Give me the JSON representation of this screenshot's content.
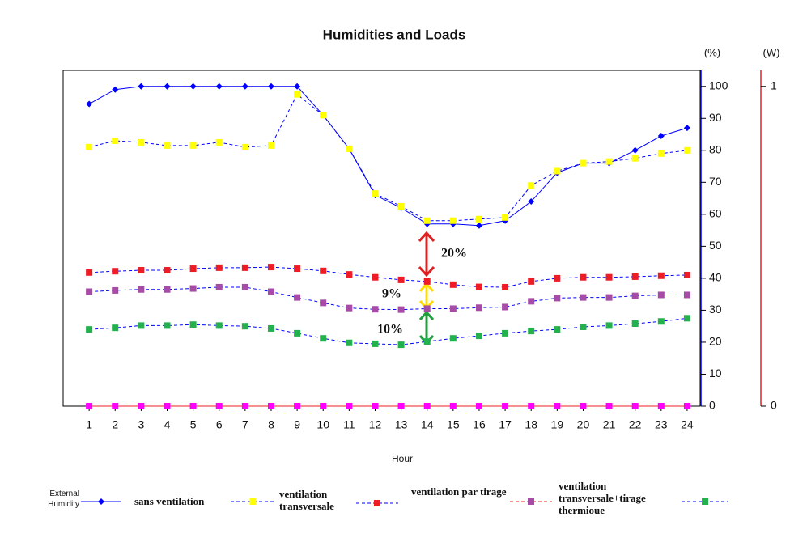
{
  "chart_data": {
    "type": "line",
    "title": "Humidities and Loads",
    "x_label": "Hour",
    "y_label": "(%)",
    "y2_label": "(W)",
    "x": [
      1,
      2,
      3,
      4,
      5,
      6,
      7,
      8,
      9,
      10,
      11,
      12,
      13,
      14,
      15,
      16,
      17,
      18,
      19,
      20,
      21,
      22,
      23,
      24
    ],
    "xlim": [
      0,
      24.5
    ],
    "xticks": [
      1,
      2,
      3,
      4,
      5,
      6,
      7,
      8,
      9,
      10,
      11,
      12,
      13,
      14,
      15,
      16,
      17,
      18,
      19,
      20,
      21,
      22,
      23,
      24
    ],
    "ylim": [
      0,
      105
    ],
    "yticks": [
      0,
      10,
      20,
      30,
      40,
      50,
      60,
      70,
      80,
      90,
      100
    ],
    "y2lim": [
      0,
      1.05
    ],
    "y2ticks": [
      0,
      1
    ],
    "series": [
      {
        "name": "External Humidity",
        "color": "#0000ff",
        "line_color": "#0000ff",
        "line_style": "solid",
        "marker": "diamond",
        "values": [
          94.5,
          99,
          100,
          100,
          100,
          100,
          100,
          100,
          100,
          91,
          80.5,
          66,
          62,
          57,
          57,
          56.5,
          58,
          64,
          73,
          76,
          76,
          80,
          84.5,
          87
        ]
      },
      {
        "name": "sans ventilation",
        "color": "#ffff00",
        "line_color": "#0000ff",
        "line_style": "dashed",
        "marker": "square",
        "values": [
          81,
          83,
          82.5,
          81.5,
          81.5,
          82.5,
          81,
          81.5,
          97.5,
          91,
          80.5,
          66.5,
          62.5,
          58,
          58,
          58.5,
          59,
          69,
          73.5,
          76,
          76.5,
          77.5,
          79,
          80
        ]
      },
      {
        "name": "ventilation transversale",
        "color": "#ee1c25",
        "line_color": "#0000ff",
        "line_style": "dashed",
        "marker": "square",
        "values": [
          41.8,
          42.2,
          42.5,
          42.5,
          43,
          43.3,
          43.3,
          43.5,
          43,
          42.3,
          41.2,
          40.3,
          39.5,
          39,
          38,
          37.3,
          37.2,
          39,
          40,
          40.3,
          40.3,
          40.5,
          40.8,
          41
        ]
      },
      {
        "name": "ventilation par tirage",
        "color": "#a64ca6",
        "line_color": "#0000ff",
        "line_style": "dashed",
        "marker": "square",
        "values": [
          35.8,
          36.2,
          36.5,
          36.5,
          36.8,
          37.2,
          37.2,
          35.8,
          34,
          32.3,
          30.7,
          30.3,
          30.2,
          30.5,
          30.5,
          30.8,
          31,
          32.8,
          33.8,
          34,
          34,
          34.5,
          34.8,
          34.8
        ]
      },
      {
        "name": "ventilation transversale+tirage thermioue",
        "color": "#22b14c",
        "line_color": "#0000ff",
        "line_style": "dashed",
        "marker": "square",
        "values": [
          24,
          24.5,
          25.2,
          25.2,
          25.5,
          25.2,
          25,
          24.3,
          22.8,
          21.2,
          19.8,
          19.5,
          19.2,
          20.2,
          21.2,
          22,
          22.8,
          23.5,
          24,
          24.8,
          25.2,
          25.8,
          26.5,
          27.5
        ]
      },
      {
        "color": "#ff00ff",
        "line_color": "#ee1c25",
        "line_style": "solid",
        "marker": "square",
        "axis": "y2",
        "values": [
          0,
          0,
          0,
          0,
          0,
          0,
          0,
          0,
          0,
          0,
          0,
          0,
          0,
          0,
          0,
          0,
          0,
          0,
          0,
          0,
          0,
          0,
          0,
          0
        ]
      }
    ],
    "annotations": [
      {
        "text": "20%",
        "color": "#e02020"
      },
      {
        "text": "9%",
        "color": "#a64ca6"
      },
      {
        "text": "10%",
        "color": "#22b14c"
      }
    ]
  }
}
